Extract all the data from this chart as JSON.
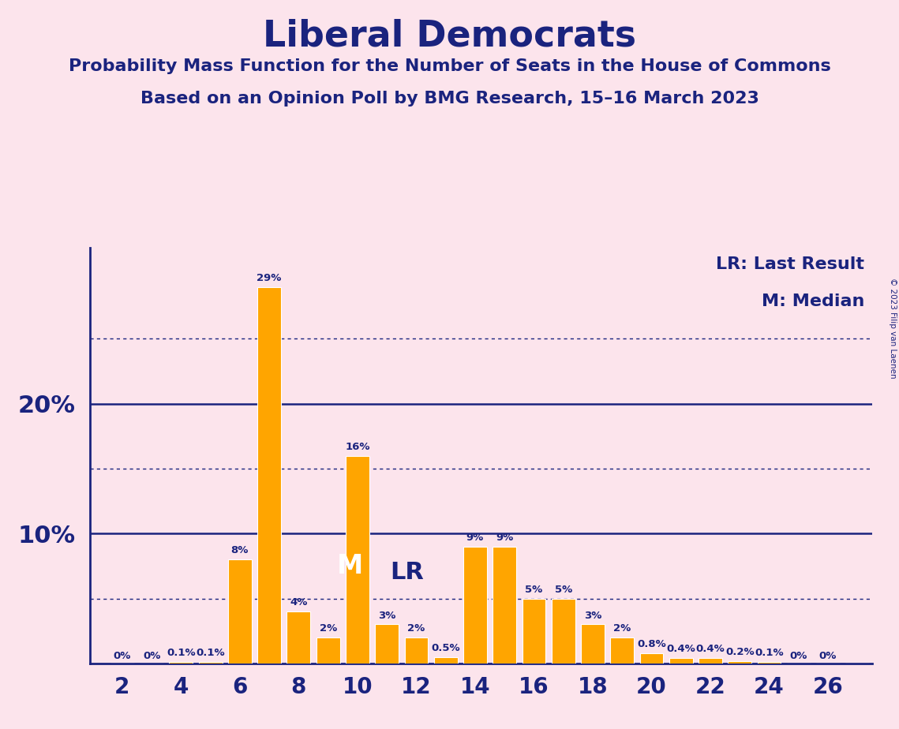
{
  "title": "Liberal Democrats",
  "subtitle1": "Probability Mass Function for the Number of Seats in the House of Commons",
  "subtitle2": "Based on an Opinion Poll by BMG Research, 15–16 March 2023",
  "copyright": "© 2023 Filip van Laenen",
  "background_color": "#fce4ec",
  "bar_color": "#FFA500",
  "bar_edge_color": "#ffffff",
  "text_color": "#1a237e",
  "axis_color": "#1a237e",
  "seats": [
    2,
    3,
    4,
    5,
    6,
    7,
    8,
    9,
    10,
    11,
    12,
    13,
    14,
    15,
    16,
    17,
    18,
    19,
    20,
    21,
    22,
    23,
    24,
    25,
    26,
    27
  ],
  "probabilities": [
    0.0,
    0.0,
    0.1,
    0.1,
    8.0,
    29.0,
    4.0,
    2.0,
    16.0,
    3.0,
    2.0,
    0.5,
    9.0,
    9.0,
    5.0,
    5.0,
    3.0,
    2.0,
    0.8,
    0.4,
    0.4,
    0.2,
    0.1,
    0.0,
    0.0,
    0.0
  ],
  "labels": [
    "0%",
    "0%",
    "0.1%",
    "0.1%",
    "8%",
    "29%",
    "4%",
    "2%",
    "16%",
    "3%",
    "2%",
    "0.5%",
    "9%",
    "9%",
    "5%",
    "5%",
    "3%",
    "2%",
    "0.8%",
    "0.4%",
    "0.4%",
    "0.2%",
    "0.1%",
    "0%",
    "0%",
    ""
  ],
  "median_seat": 10,
  "last_result_seat": 11,
  "solid_lines": [
    10,
    20
  ],
  "dotted_lines": [
    5,
    15,
    25
  ],
  "xticks": [
    2,
    4,
    6,
    8,
    10,
    12,
    14,
    16,
    18,
    20,
    22,
    24,
    26
  ],
  "xlim": [
    0.9,
    27.5
  ],
  "ylim": [
    0,
    32
  ]
}
